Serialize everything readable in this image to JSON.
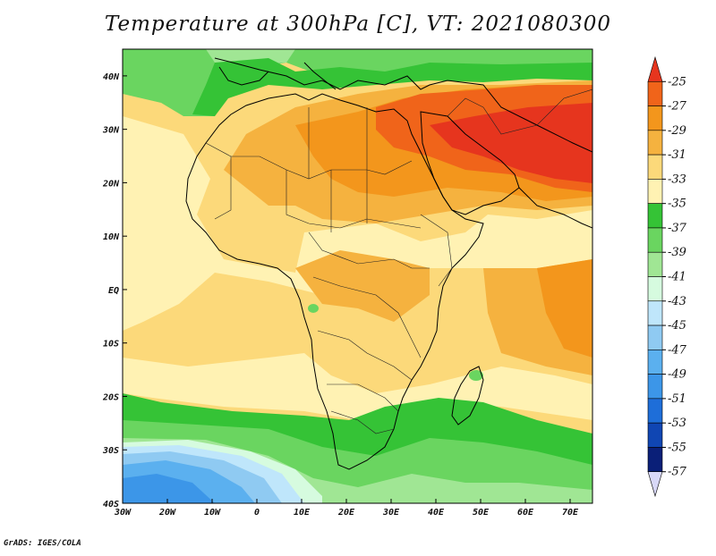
{
  "title": "Temperature at 300hPa [C], VT: 2021080300",
  "credit": "GrADS: IGES/COLA",
  "map": {
    "lon_range": [
      -30,
      75
    ],
    "lat_range": [
      -40,
      45
    ],
    "lon_ticks": [
      {
        "value": -30,
        "label": "30W"
      },
      {
        "value": -20,
        "label": "20W"
      },
      {
        "value": -10,
        "label": "10W"
      },
      {
        "value": 0,
        "label": "0"
      },
      {
        "value": 10,
        "label": "10E"
      },
      {
        "value": 20,
        "label": "20E"
      },
      {
        "value": 30,
        "label": "30E"
      },
      {
        "value": 40,
        "label": "40E"
      },
      {
        "value": 50,
        "label": "50E"
      },
      {
        "value": 60,
        "label": "60E"
      },
      {
        "value": 70,
        "label": "70E"
      }
    ],
    "lat_ticks": [
      {
        "value": 40,
        "label": "40N"
      },
      {
        "value": 30,
        "label": "30N"
      },
      {
        "value": 20,
        "label": "20N"
      },
      {
        "value": 10,
        "label": "10N"
      },
      {
        "value": 0,
        "label": "EQ"
      },
      {
        "value": -10,
        "label": "10S"
      },
      {
        "value": -20,
        "label": "20S"
      },
      {
        "value": -30,
        "label": "30S"
      },
      {
        "value": -40,
        "label": "40S"
      }
    ]
  },
  "colorbar": {
    "levels": [
      "-25",
      "-27",
      "-29",
      "-31",
      "-33",
      "-35",
      "-37",
      "-39",
      "-41",
      "-43",
      "-45",
      "-47",
      "-49",
      "-51",
      "-53",
      "-55",
      "-57"
    ],
    "colors": [
      "#e6351e",
      "#f0641a",
      "#f3961c",
      "#f5b23f",
      "#fcd97a",
      "#fff2b3",
      "#35c336",
      "#6ad560",
      "#a0e694",
      "#d6fbdf",
      "#bfe6fb",
      "#8fcaf2",
      "#5bb0ef",
      "#3c96e8",
      "#1e6ed9",
      "#1046b3",
      "#0a1f78",
      "#d8d8f8"
    ]
  }
}
